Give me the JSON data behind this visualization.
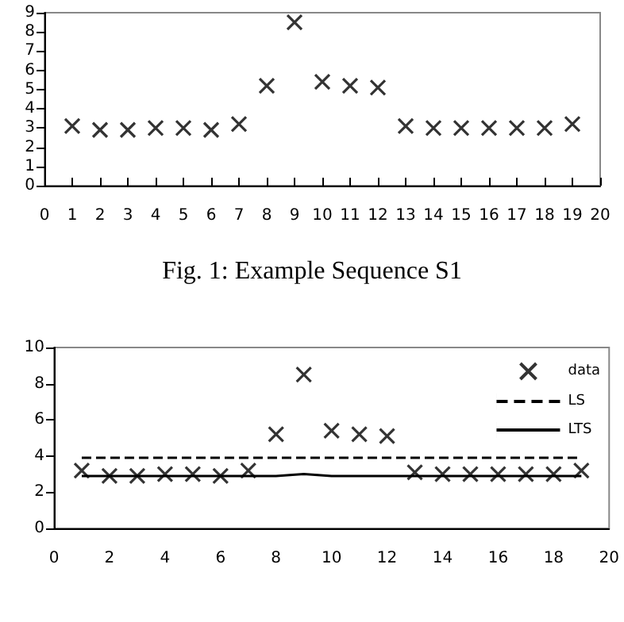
{
  "chart_data": [
    {
      "type": "scatter",
      "title": "Fig. 1: Example Sequence S1",
      "x": [
        1,
        2,
        3,
        4,
        5,
        6,
        7,
        8,
        9,
        10,
        11,
        12,
        13,
        14,
        15,
        16,
        17,
        18,
        19
      ],
      "values": [
        3.1,
        2.9,
        2.9,
        3.0,
        3.0,
        2.9,
        3.2,
        5.2,
        8.5,
        5.4,
        5.2,
        5.1,
        3.1,
        3.0,
        3.0,
        3.0,
        3.0,
        3.0,
        3.2
      ],
      "color": "#000000",
      "marker": "cross",
      "xlim": [
        0,
        20
      ],
      "xticks": [
        0,
        1,
        2,
        3,
        4,
        5,
        6,
        7,
        8,
        9,
        10,
        11,
        12,
        13,
        14,
        15,
        16,
        17,
        18,
        19,
        20
      ],
      "ylim": [
        0,
        9
      ],
      "yticks": [
        0,
        1,
        2,
        3,
        4,
        5,
        6,
        7,
        8,
        9
      ],
      "grid": false,
      "legend": false
    },
    {
      "type": "scatter",
      "x": [
        1,
        2,
        3,
        4,
        5,
        6,
        7,
        8,
        9,
        10,
        11,
        12,
        13,
        14,
        15,
        16,
        17,
        18,
        19
      ],
      "series": [
        {
          "name": "data",
          "color": "#000000",
          "marker": "cross",
          "values": [
            3.2,
            2.9,
            2.9,
            3.0,
            3.0,
            2.9,
            3.2,
            5.2,
            8.5,
            5.4,
            5.2,
            5.1,
            3.1,
            3.0,
            3.0,
            3.0,
            3.0,
            3.0,
            3.2
          ]
        },
        {
          "name": "LS",
          "type": "line",
          "color": "#000000",
          "line_style": "dashed",
          "marker": "none",
          "x": [
            1,
            19
          ],
          "values": [
            3.9,
            3.9
          ]
        },
        {
          "name": "LTS",
          "type": "line",
          "color": "#000000",
          "line_style": "solid",
          "marker": "none",
          "values": [
            2.9,
            2.9,
            2.9,
            2.9,
            2.9,
            2.9,
            2.9,
            2.9,
            3.0,
            2.9,
            2.9,
            2.9,
            2.9,
            2.9,
            2.9,
            2.9,
            2.9,
            2.9,
            2.9
          ]
        }
      ],
      "xlim": [
        0,
        20
      ],
      "xticks": [
        0,
        2,
        4,
        6,
        8,
        10,
        12,
        14,
        16,
        18,
        20
      ],
      "ylim": [
        0,
        10
      ],
      "yticks": [
        0,
        2,
        4,
        6,
        8,
        10
      ],
      "grid": false,
      "legend": "top right"
    }
  ]
}
